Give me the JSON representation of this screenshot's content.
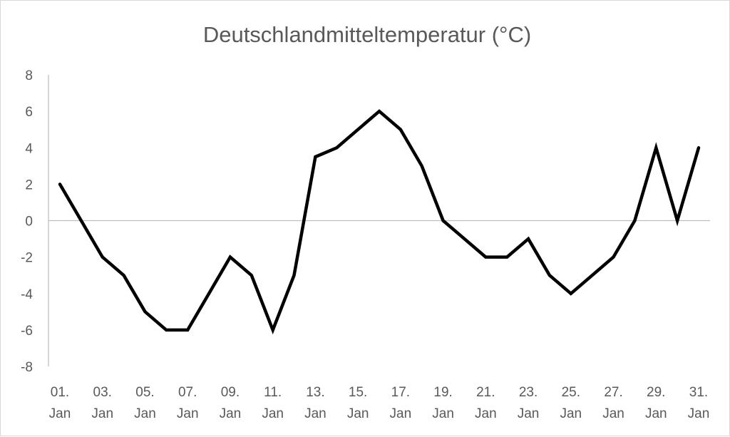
{
  "chart_data": {
    "type": "line",
    "title": "Deutschlandmitteltemperatur (°C)",
    "xlabel": "",
    "ylabel": "",
    "ylim": [
      -8,
      8
    ],
    "y_ticks": [
      8,
      6,
      4,
      2,
      0,
      -2,
      -4,
      -6,
      -8
    ],
    "x_tick_labels": [
      {
        "index": 0,
        "day": "01.",
        "month": "Jan"
      },
      {
        "index": 2,
        "day": "03.",
        "month": "Jan"
      },
      {
        "index": 4,
        "day": "05.",
        "month": "Jan"
      },
      {
        "index": 6,
        "day": "07.",
        "month": "Jan"
      },
      {
        "index": 8,
        "day": "09.",
        "month": "Jan"
      },
      {
        "index": 10,
        "day": "11.",
        "month": "Jan"
      },
      {
        "index": 12,
        "day": "13.",
        "month": "Jan"
      },
      {
        "index": 14,
        "day": "15.",
        "month": "Jan"
      },
      {
        "index": 16,
        "day": "17.",
        "month": "Jan"
      },
      {
        "index": 18,
        "day": "19.",
        "month": "Jan"
      },
      {
        "index": 20,
        "day": "21.",
        "month": "Jan"
      },
      {
        "index": 22,
        "day": "23.",
        "month": "Jan"
      },
      {
        "index": 24,
        "day": "25.",
        "month": "Jan"
      },
      {
        "index": 26,
        "day": "27.",
        "month": "Jan"
      },
      {
        "index": 28,
        "day": "29.",
        "month": "Jan"
      },
      {
        "index": 30,
        "day": "31.",
        "month": "Jan"
      }
    ],
    "x": [
      "01. Jan",
      "02. Jan",
      "03. Jan",
      "04. Jan",
      "05. Jan",
      "06. Jan",
      "07. Jan",
      "08. Jan",
      "09. Jan",
      "10. Jan",
      "11. Jan",
      "12. Jan",
      "13. Jan",
      "14. Jan",
      "15. Jan",
      "16. Jan",
      "17. Jan",
      "18. Jan",
      "19. Jan",
      "20. Jan",
      "21. Jan",
      "22. Jan",
      "23. Jan",
      "24. Jan",
      "25. Jan",
      "26. Jan",
      "27. Jan",
      "28. Jan",
      "29. Jan",
      "30. Jan",
      "31. Jan"
    ],
    "series": [
      {
        "values": [
          2,
          0,
          -2,
          -3,
          -5,
          -6,
          -6,
          -4,
          -2,
          -3,
          -6,
          -3,
          3.5,
          4,
          5,
          6,
          5,
          3,
          0,
          -1,
          -2,
          -2,
          -1,
          -3,
          -4,
          -3,
          -2,
          0,
          4,
          0,
          4
        ]
      }
    ],
    "grid": false,
    "zero_line": true,
    "colors": {
      "line": "#000000",
      "axis": "#bfbfbf",
      "text": "#595959",
      "border": "#d9d9d9"
    }
  }
}
